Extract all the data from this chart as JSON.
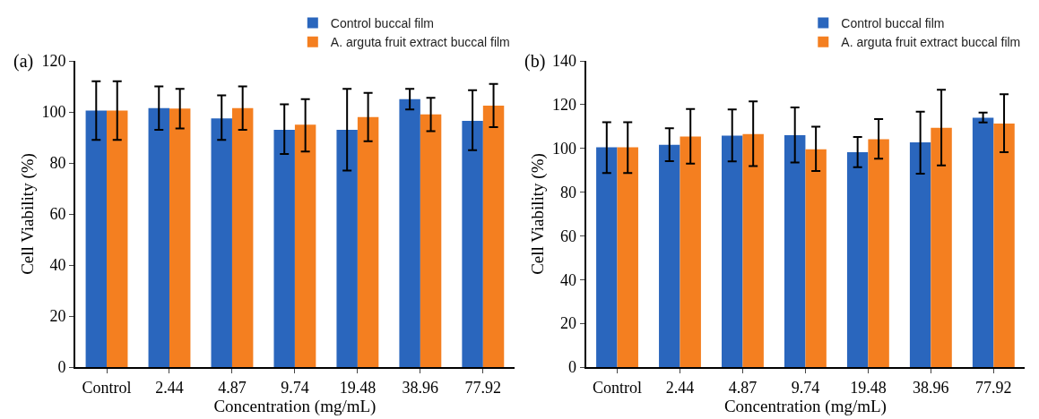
{
  "chart_data": [
    {
      "type": "bar",
      "annotations": [
        "(a)"
      ],
      "xlabel": "Concentration (mg/mL)",
      "ylabel": "Cell Viability (%)",
      "categories": [
        "Control",
        "2.44",
        "4.87",
        "9.74",
        "19.48",
        "38.96",
        "77.92"
      ],
      "series": [
        {
          "name": "Control buccal film",
          "color": "#2a66bd",
          "values": [
            100.5,
            101.5,
            97.5,
            93,
            93,
            105,
            96.5
          ],
          "errors": [
            [
              89,
              112
            ],
            [
              93,
              110
            ],
            [
              89,
              106.5
            ],
            [
              83.5,
              103
            ],
            [
              77,
              109
            ],
            [
              101,
              109
            ],
            [
              85,
              108.5
            ]
          ]
        },
        {
          "name": "A. arguta fruit extract buccal film",
          "color": "#f47f20",
          "values": [
            100.5,
            101.3,
            101.5,
            95,
            98,
            99,
            102.5
          ],
          "errors": [
            [
              89,
              112
            ],
            [
              93.5,
              109
            ],
            [
              93,
              110
            ],
            [
              84.5,
              105
            ],
            [
              88.5,
              107.5
            ],
            [
              92.5,
              105.5
            ],
            [
              94,
              111
            ]
          ]
        }
      ],
      "ylim": [
        0,
        120
      ],
      "yticks": [
        0,
        20,
        40,
        60,
        80,
        100,
        120
      ],
      "grid": false,
      "legend": "top right"
    },
    {
      "type": "bar",
      "annotations": [
        "(b)"
      ],
      "xlabel": "Concentration (mg/mL)",
      "ylabel": "Cell Viability (%)",
      "categories": [
        "Control",
        "2.44",
        "4.87",
        "9.74",
        "19.48",
        "38.96",
        "77.92"
      ],
      "series": [
        {
          "name": "Control buccal film",
          "color": "#2a66bd",
          "values": [
            100.5,
            101.6,
            105.8,
            106,
            98.2,
            102.7,
            114
          ],
          "errors": [
            [
              88.7,
              112
            ],
            [
              94.2,
              109.2
            ],
            [
              94,
              117.8
            ],
            [
              93.5,
              118.7
            ],
            [
              91.4,
              105.2
            ],
            [
              88.4,
              116.8
            ],
            [
              111.9,
              116.4
            ]
          ]
        },
        {
          "name": "A. arguta fruit extract buccal film",
          "color": "#f47f20",
          "values": [
            100.5,
            105.4,
            106.5,
            99.6,
            104.2,
            109.4,
            111.3
          ],
          "errors": [
            [
              88.7,
              112
            ],
            [
              93,
              118
            ],
            [
              91.9,
              121.5
            ],
            [
              89.7,
              109.9
            ],
            [
              95.3,
              113.4
            ],
            [
              92.2,
              126.8
            ],
            [
              98.2,
              124.8
            ]
          ]
        }
      ],
      "ylim": [
        0,
        140
      ],
      "yticks": [
        0,
        20,
        40,
        60,
        80,
        100,
        120,
        140
      ],
      "grid": false,
      "legend": "top right"
    }
  ]
}
